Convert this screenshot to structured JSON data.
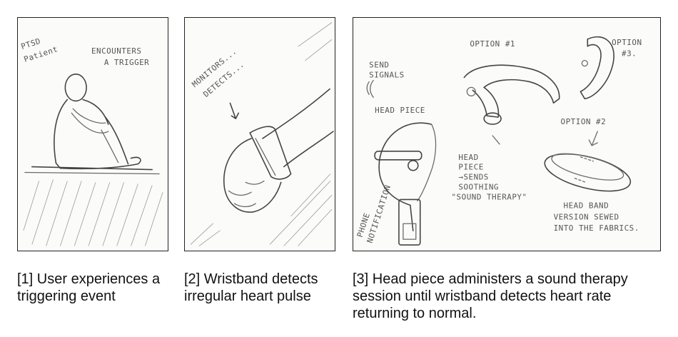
{
  "panels": [
    {
      "caption": "[1] User experiences a triggering event",
      "notes": {
        "patient_line1": "PTSD",
        "patient_line2": "Patient",
        "trigger_line1": "ENCOUNTERS",
        "trigger_line2": "A TRIGGER"
      }
    },
    {
      "caption": "[2] Wristband detects irregular heart pulse",
      "notes": {
        "line1": "MONITORS...",
        "line2": "DETECTS..."
      }
    },
    {
      "caption": "[3] Head piece administers a sound therapy session until wristband detects heart rate returning to normal.",
      "notes": {
        "option1": "OPTION #1",
        "option3_line1": "OPTION",
        "option3_line2": "#3.",
        "option2": "OPTION #2",
        "send_line1": "SEND",
        "send_line2": "SIGNALS",
        "head_piece": "HEAD PIECE",
        "sends_line1": "HEAD",
        "sends_line2": "PIECE",
        "sends_line3": "→SENDS",
        "sends_line4": "SOOTHING",
        "sends_line5": "\"SOUND THERAPY\"",
        "phone_line1": "PHONE",
        "phone_line2": "NOTIFICATION",
        "headband_line1": "HEAD BAND",
        "headband_line2": "VERSION SEWED",
        "headband_line3": "INTO THE FABRICS."
      }
    }
  ]
}
